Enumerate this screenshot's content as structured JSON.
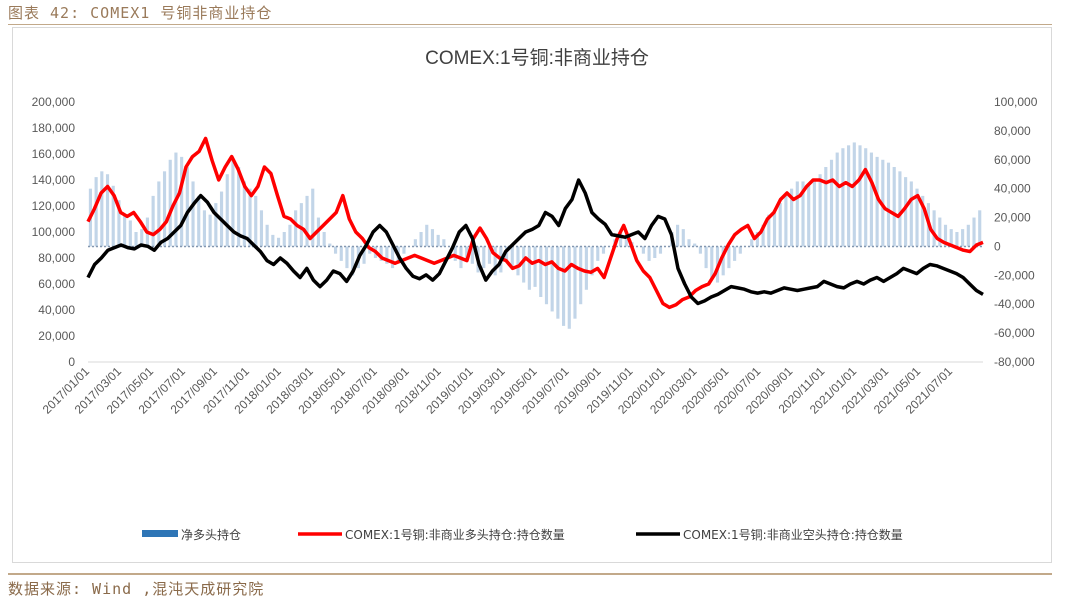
{
  "figure": {
    "caption": "图表 42: COMEX1 号铜非商业持仓",
    "source": "数据来源: Wind ,混沌天成研究院"
  },
  "chart_data": {
    "type": "line",
    "title": "COMEX:1号铜:非商业持仓",
    "grid": false,
    "legend_position": "bottom",
    "x_tick_labels": [
      "2017/01/01",
      "2017/03/01",
      "2017/05/01",
      "2017/07/01",
      "2017/09/01",
      "2017/11/01",
      "2018/01/01",
      "2018/03/01",
      "2018/05/01",
      "2018/07/01",
      "2018/09/01",
      "2018/11/01",
      "2019/01/01",
      "2019/03/01",
      "2019/05/01",
      "2019/07/01",
      "2019/09/01",
      "2019/11/01",
      "2020/01/01",
      "2020/03/01",
      "2020/05/01",
      "2020/07/01",
      "2020/09/01",
      "2020/11/01",
      "2021/01/01",
      "2021/03/01",
      "2021/05/01",
      "2021/07/01"
    ],
    "y_left": {
      "ticks": [
        "0",
        "20,000",
        "40,000",
        "60,000",
        "80,000",
        "100,000",
        "120,000",
        "140,000",
        "160,000",
        "180,000",
        "200,000"
      ],
      "range": [
        0,
        200000
      ]
    },
    "y_right": {
      "ticks": [
        "-80,000",
        "-60,000",
        "-40,000",
        "-20,000",
        "0",
        "20,000",
        "40,000",
        "60,000",
        "80,000",
        "100,000"
      ],
      "range": [
        -80000,
        100000
      ]
    },
    "series": [
      {
        "name": "净多头持仓",
        "axis": "right",
        "style": "bar",
        "color": "#2e75b6",
        "values": [
          40000,
          48000,
          52000,
          50000,
          42000,
          32000,
          22000,
          18000,
          10000,
          12000,
          20000,
          35000,
          45000,
          52000,
          60000,
          65000,
          62000,
          55000,
          45000,
          35000,
          25000,
          22000,
          30000,
          38000,
          50000,
          60000,
          55000,
          45000,
          40000,
          35000,
          25000,
          15000,
          8000,
          6000,
          10000,
          15000,
          25000,
          30000,
          35000,
          40000,
          20000,
          10000,
          2000,
          -5000,
          -10000,
          -15000,
          -20000,
          -15000,
          -12000,
          -5000,
          -8000,
          -10000,
          -12000,
          -15000,
          -10000,
          -5000,
          0,
          5000,
          10000,
          15000,
          12000,
          8000,
          5000,
          0,
          -10000,
          -15000,
          -8000,
          -12000,
          -18000,
          -15000,
          -12000,
          -20000,
          -18000,
          -10000,
          -15000,
          -20000,
          -25000,
          -30000,
          -28000,
          -35000,
          -40000,
          -45000,
          -50000,
          -55000,
          -57000,
          -50000,
          -40000,
          -30000,
          -20000,
          -10000,
          -5000,
          0,
          5000,
          10000,
          8000,
          3000,
          0,
          -5000,
          -10000,
          -8000,
          -5000,
          0,
          10000,
          15000,
          12000,
          5000,
          2000,
          -5000,
          -15000,
          -22000,
          -25000,
          -20000,
          -15000,
          -10000,
          -5000,
          0,
          5000,
          10000,
          15000,
          22000,
          25000,
          30000,
          35000,
          40000,
          45000,
          45000,
          42000,
          45000,
          50000,
          55000,
          60000,
          65000,
          68000,
          70000,
          72000,
          70000,
          68000,
          65000,
          62000,
          60000,
          58000,
          55000,
          52000,
          48000,
          45000,
          40000,
          35000,
          30000,
          25000,
          20000,
          15000,
          12000,
          10000,
          12000,
          15000,
          20000,
          25000
        ]
      },
      {
        "name": "COMEX:1号铜:非商业多头持仓:持仓数量",
        "axis": "left",
        "style": "line",
        "color": "#ff0000",
        "values": [
          108000,
          118000,
          130000,
          135000,
          128000,
          115000,
          112000,
          115000,
          108000,
          100000,
          98000,
          102000,
          108000,
          120000,
          130000,
          150000,
          158000,
          162000,
          172000,
          155000,
          140000,
          150000,
          158000,
          148000,
          135000,
          128000,
          135000,
          150000,
          145000,
          128000,
          112000,
          110000,
          105000,
          102000,
          95000,
          100000,
          105000,
          110000,
          115000,
          128000,
          110000,
          100000,
          95000,
          88000,
          85000,
          80000,
          78000,
          76000,
          78000,
          80000,
          82000,
          80000,
          78000,
          76000,
          78000,
          80000,
          82000,
          80000,
          78000,
          95000,
          103000,
          95000,
          84000,
          80000,
          78000,
          72000,
          74000,
          80000,
          76000,
          78000,
          75000,
          77000,
          72000,
          70000,
          75000,
          72000,
          70000,
          69000,
          72000,
          65000,
          80000,
          95000,
          105000,
          92000,
          78000,
          70000,
          65000,
          55000,
          45000,
          42000,
          44000,
          48000,
          50000,
          55000,
          58000,
          60000,
          68000,
          80000,
          90000,
          98000,
          102000,
          105000,
          95000,
          100000,
          110000,
          115000,
          125000,
          130000,
          125000,
          128000,
          135000,
          140000,
          140000,
          138000,
          140000,
          135000,
          138000,
          135000,
          140000,
          148000,
          138000,
          125000,
          118000,
          115000,
          112000,
          118000,
          125000,
          128000,
          118000,
          102000,
          95000,
          92000,
          90000,
          88000,
          86000,
          85000,
          90000,
          92000
        ]
      },
      {
        "name": "COMEX:1号铜:非商业空头持仓:持仓数量",
        "axis": "left",
        "style": "line",
        "color": "#000000",
        "values": [
          65000,
          75000,
          80000,
          86000,
          88000,
          90000,
          88000,
          87000,
          90000,
          89000,
          86000,
          92000,
          95000,
          100000,
          105000,
          115000,
          122000,
          128000,
          123000,
          115000,
          110000,
          105000,
          100000,
          97000,
          95000,
          90000,
          85000,
          78000,
          75000,
          80000,
          76000,
          70000,
          65000,
          72000,
          63000,
          58000,
          63000,
          70000,
          68000,
          62000,
          70000,
          82000,
          90000,
          100000,
          105000,
          100000,
          90000,
          80000,
          72000,
          66000,
          64000,
          67000,
          63000,
          68000,
          78000,
          88000,
          100000,
          105000,
          95000,
          75000,
          63000,
          70000,
          75000,
          85000,
          90000,
          95000,
          100000,
          102000,
          105000,
          115000,
          112000,
          105000,
          118000,
          125000,
          140000,
          130000,
          115000,
          110000,
          106000,
          98000,
          97000,
          96000,
          98000,
          100000,
          95000,
          105000,
          112000,
          110000,
          98000,
          72000,
          60000,
          50000,
          45000,
          47000,
          50000,
          52000,
          55000,
          58000,
          57000,
          56000,
          54000,
          53000,
          54000,
          53000,
          55000,
          57000,
          56000,
          55000,
          56000,
          57000,
          58000,
          62000,
          60000,
          58000,
          57000,
          60000,
          62000,
          60000,
          63000,
          65000,
          62000,
          65000,
          68000,
          72000,
          70000,
          68000,
          72000,
          75000,
          74000,
          72000,
          70000,
          68000,
          65000,
          60000,
          55000,
          52000
        ]
      }
    ]
  }
}
